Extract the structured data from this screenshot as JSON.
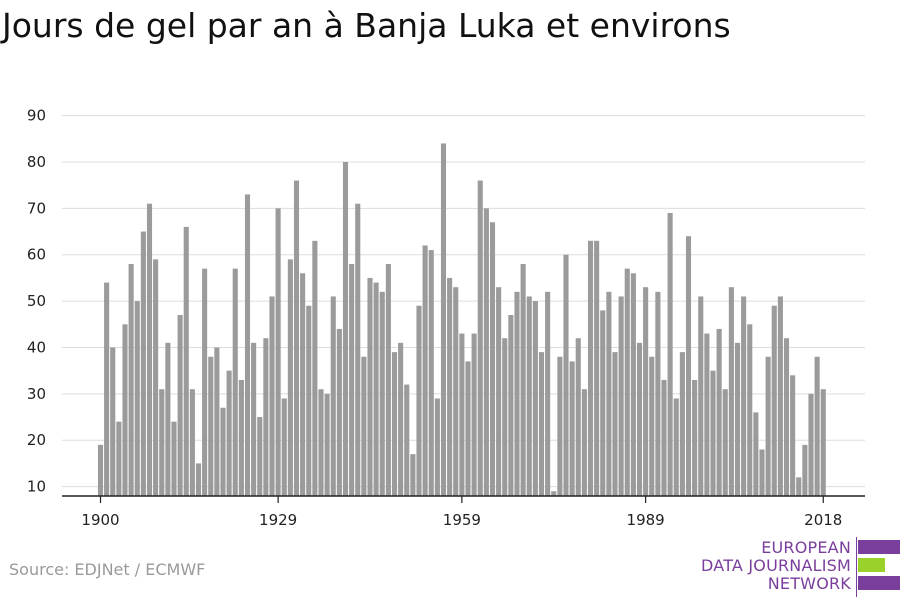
{
  "page": {
    "title": "Jours de gel par an à Banja Luka et environs",
    "source": "Source: EDJNet / ECMWF"
  },
  "logo": {
    "lines": [
      "EUROPEAN",
      "DATA JOURNALISM",
      "NETWORK"
    ],
    "colors": {
      "purple": "#7a3e9d",
      "green": "#9bd12b"
    }
  },
  "chart_data": {
    "type": "bar",
    "title": "Jours de gel par an à Banja Luka et environs",
    "xlabel": "",
    "ylabel": "",
    "x_start": 1900,
    "x_end": 2018,
    "xticks": [
      1900,
      1929,
      1959,
      1989,
      2018
    ],
    "ylim": [
      10,
      90
    ],
    "yticks": [
      10,
      20,
      30,
      40,
      50,
      60,
      70,
      80,
      90
    ],
    "grid": true,
    "legend": "none",
    "bar_color": "#9b9b9b",
    "values": [
      19,
      54,
      40,
      24,
      45,
      58,
      50,
      65,
      71,
      59,
      31,
      41,
      24,
      47,
      66,
      31,
      15,
      57,
      38,
      40,
      27,
      35,
      57,
      33,
      73,
      41,
      25,
      42,
      51,
      70,
      29,
      59,
      76,
      56,
      49,
      63,
      31,
      30,
      51,
      44,
      80,
      58,
      71,
      38,
      55,
      54,
      52,
      58,
      39,
      41,
      32,
      17,
      49,
      62,
      61,
      29,
      84,
      55,
      53,
      43,
      37,
      43,
      76,
      70,
      67,
      53,
      42,
      47,
      52,
      58,
      51,
      50,
      39,
      52,
      9,
      38,
      60,
      37,
      42,
      31,
      63,
      63,
      48,
      52,
      39,
      51,
      57,
      56,
      41,
      53,
      38,
      52,
      33,
      69,
      29,
      39,
      64,
      33,
      51,
      43,
      35,
      44,
      31,
      53,
      41,
      51,
      45,
      26,
      18,
      38,
      49,
      51,
      42,
      34,
      12,
      19,
      30,
      38,
      31
    ]
  }
}
